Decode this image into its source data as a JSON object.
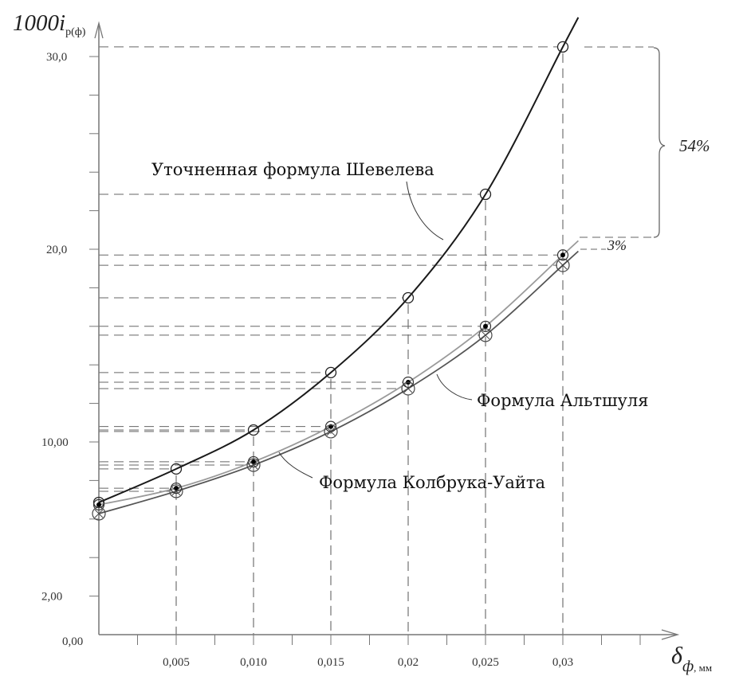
{
  "chart_data": {
    "type": "line",
    "title": "",
    "ylabel": "1000i",
    "ylabel_sub": "р(ф)",
    "xlabel_symbol": "δ",
    "xlabel_sub": "ф",
    "xlabel_unit": ", мм",
    "xlim": [
      0,
      0.036
    ],
    "ylim": [
      0,
      30.5
    ],
    "x": [
      0,
      0.005,
      0.01,
      0.015,
      0.02,
      0.025,
      0.03
    ],
    "x_tick_labels": [
      "0,005",
      "0,010",
      "0,015",
      "0,02",
      "0,025",
      "0,03"
    ],
    "x_tick_values": [
      0.005,
      0.01,
      0.015,
      0.02,
      0.025,
      0.03
    ],
    "y_tick_labels": [
      "0,00",
      "2,00",
      "10,00",
      "20,0",
      "30,0"
    ],
    "y_tick_values": [
      0,
      2,
      10,
      20,
      30
    ],
    "grid": false,
    "series": [
      {
        "name": "Уточненная формула Шевелева",
        "marker": "circle",
        "color": "#1a1a1a",
        "values": [
          6.86,
          8.6,
          10.62,
          13.6,
          17.48,
          22.85,
          30.5
        ]
      },
      {
        "name": "Формула Альтшуля",
        "marker": "filled-circle",
        "color": "#9a9a9a",
        "values": [
          6.74,
          7.6,
          8.97,
          10.8,
          13.1,
          16.0,
          19.7
        ]
      },
      {
        "name": "Формула Колбрука-Уайта",
        "marker": "crossed-circle",
        "color": "#555555",
        "values": [
          6.28,
          7.44,
          8.8,
          10.54,
          12.77,
          15.54,
          19.17
        ]
      }
    ],
    "annotations": [
      "54%",
      "3%"
    ]
  }
}
